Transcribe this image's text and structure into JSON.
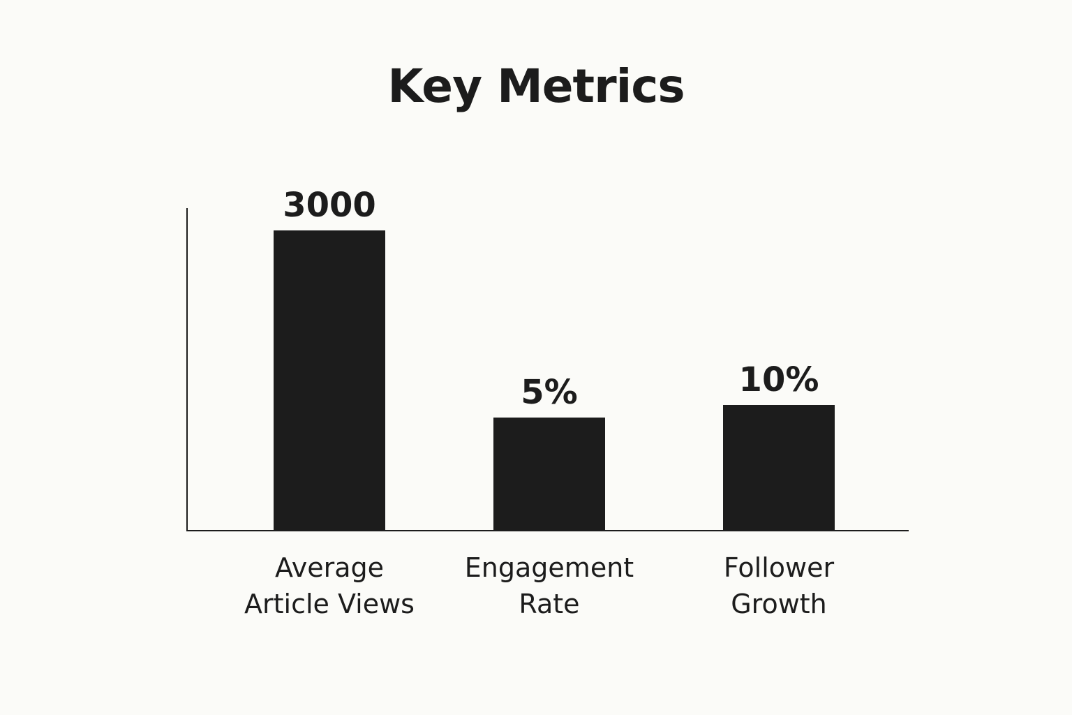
{
  "chart_data": {
    "type": "bar",
    "title": "Key Metrics",
    "categories": [
      [
        "Average",
        "Article Views"
      ],
      [
        "Engagement",
        "Rate"
      ],
      [
        "Follower",
        "Growth"
      ]
    ],
    "values": [
      3000,
      5,
      10
    ],
    "value_labels": [
      "3000",
      "5%",
      "10%"
    ],
    "xlabel": "",
    "ylabel": "",
    "grid": false,
    "legend": "none",
    "colors": {
      "bar": "#1c1c1c",
      "axis": "#1c1c1c",
      "background": "#fbfbf8"
    }
  }
}
